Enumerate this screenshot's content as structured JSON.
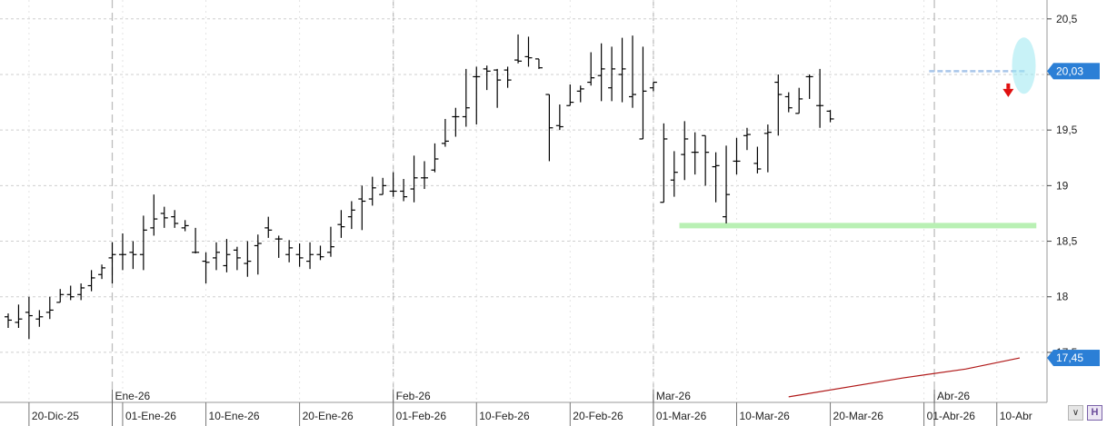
{
  "chart_data": {
    "type": "ohlc",
    "price_axis": {
      "ticks": [
        {
          "value": 20.5,
          "label": "20,5"
        },
        {
          "value": 20.0,
          "label": "20"
        },
        {
          "value": 19.5,
          "label": "19,5"
        },
        {
          "value": 19.0,
          "label": "19"
        },
        {
          "value": 18.5,
          "label": "18,5"
        },
        {
          "value": 18.0,
          "label": "18"
        },
        {
          "value": 17.5,
          "label": "17,5"
        }
      ],
      "range": [
        17.05,
        20.67
      ]
    },
    "date_axis": {
      "ticks": [
        {
          "bar": 2,
          "label": "20-Dic-25"
        },
        {
          "bar": 11,
          "label": "01-Ene-26"
        },
        {
          "bar": 19,
          "label": "10-Ene-26"
        },
        {
          "bar": 28,
          "label": "20-Ene-26"
        },
        {
          "bar": 37,
          "label": "01-Feb-26"
        },
        {
          "bar": 45,
          "label": "10-Feb-26"
        },
        {
          "bar": 54,
          "label": "20-Feb-26"
        },
        {
          "bar": 62,
          "label": "01-Mar-26"
        },
        {
          "bar": 70,
          "label": "10-Mar-26"
        },
        {
          "bar": 79,
          "label": "20-Mar-26"
        },
        {
          "bar": 88,
          "label": "01-Abr-26"
        },
        {
          "bar": 95,
          "label": "10-Abr"
        }
      ],
      "month_markers": [
        {
          "bar": 10,
          "label": "Ene-26"
        },
        {
          "bar": 37,
          "label": "Feb-26"
        },
        {
          "bar": 62,
          "label": "Mar-26"
        },
        {
          "bar": 89,
          "label": "Abr-26"
        }
      ]
    },
    "bars": [
      [
        17.82,
        17.85,
        17.72,
        17.79
      ],
      [
        17.77,
        17.93,
        17.72,
        17.8
      ],
      [
        17.86,
        18.0,
        17.62,
        17.83
      ],
      [
        17.8,
        17.88,
        17.73,
        17.82
      ],
      [
        17.86,
        18.0,
        17.8,
        17.88
      ],
      [
        17.95,
        18.07,
        17.96,
        18.02
      ],
      [
        18.02,
        18.1,
        17.97,
        18.0
      ],
      [
        18.02,
        18.12,
        17.97,
        18.08
      ],
      [
        18.1,
        18.24,
        18.05,
        18.17
      ],
      [
        18.2,
        18.29,
        18.16,
        18.26
      ],
      [
        18.35,
        18.49,
        18.12,
        18.38
      ],
      [
        18.38,
        18.57,
        18.24,
        18.38
      ],
      [
        18.4,
        18.5,
        18.25,
        18.38
      ],
      [
        18.38,
        18.73,
        18.24,
        18.6
      ],
      [
        18.62,
        18.92,
        18.55,
        18.7
      ],
      [
        18.75,
        18.81,
        18.62,
        18.71
      ],
      [
        18.72,
        18.78,
        18.62,
        18.66
      ],
      [
        18.62,
        18.69,
        18.59,
        18.64
      ],
      [
        18.4,
        18.62,
        18.39,
        18.4
      ],
      [
        18.32,
        18.4,
        18.12,
        18.31
      ],
      [
        18.35,
        18.49,
        18.24,
        18.4
      ],
      [
        18.28,
        18.52,
        18.22,
        18.38
      ],
      [
        18.42,
        18.45,
        18.24,
        18.35
      ],
      [
        18.3,
        18.5,
        18.18,
        18.32
      ],
      [
        18.46,
        18.56,
        18.2,
        18.48
      ],
      [
        18.62,
        18.72,
        18.53,
        18.6
      ],
      [
        18.52,
        18.55,
        18.35,
        18.52
      ],
      [
        18.38,
        18.51,
        18.31,
        18.44
      ],
      [
        18.38,
        18.48,
        18.27,
        18.35
      ],
      [
        18.32,
        18.49,
        18.25,
        18.38
      ],
      [
        18.38,
        18.46,
        18.33,
        18.36
      ],
      [
        18.4,
        18.63,
        18.36,
        18.45
      ],
      [
        18.65,
        18.78,
        18.53,
        18.63
      ],
      [
        18.72,
        18.86,
        18.61,
        18.78
      ],
      [
        18.88,
        19.0,
        18.6,
        18.86
      ],
      [
        18.88,
        19.08,
        18.82,
        18.98
      ],
      [
        18.92,
        19.07,
        18.92,
        19.0
      ],
      [
        18.95,
        19.12,
        18.9,
        18.95
      ],
      [
        18.95,
        19.06,
        18.86,
        18.9
      ],
      [
        18.97,
        19.27,
        18.85,
        19.07
      ],
      [
        19.07,
        19.22,
        18.97,
        19.07
      ],
      [
        19.14,
        19.38,
        19.12,
        19.24
      ],
      [
        19.38,
        19.6,
        19.35,
        19.4
      ],
      [
        19.62,
        19.7,
        19.44,
        19.62
      ],
      [
        19.62,
        20.05,
        19.53,
        19.7
      ],
      [
        19.98,
        20.07,
        19.55,
        19.98
      ],
      [
        20.05,
        20.08,
        19.86,
        20.03
      ],
      [
        20.04,
        20.05,
        19.7,
        19.95
      ],
      [
        20.04,
        20.07,
        19.88,
        19.95
      ],
      [
        20.13,
        20.36,
        20.1,
        20.12
      ],
      [
        20.16,
        20.34,
        20.07,
        20.15
      ],
      [
        20.14,
        20.13,
        20.05,
        20.06
      ],
      [
        19.82,
        19.82,
        19.22,
        19.52
      ],
      [
        19.54,
        19.73,
        19.5,
        19.53
      ],
      [
        19.72,
        19.91,
        19.72,
        19.75
      ],
      [
        19.85,
        19.9,
        19.75,
        19.87
      ],
      [
        19.93,
        20.2,
        19.9,
        19.97
      ],
      [
        19.99,
        20.28,
        19.76,
        20.05
      ],
      [
        19.88,
        20.25,
        19.76,
        20.05
      ],
      [
        20.0,
        20.33,
        19.75,
        20.05
      ],
      [
        19.8,
        20.35,
        19.7,
        19.82
      ],
      [
        19.42,
        20.25,
        19.62,
        19.85
      ],
      [
        19.88,
        19.9,
        19.85,
        19.93
      ],
      [
        18.85,
        19.56,
        18.93,
        19.42
      ],
      [
        19.05,
        19.31,
        18.9,
        19.12
      ],
      [
        19.28,
        19.58,
        19.05,
        19.42
      ],
      [
        19.3,
        19.48,
        19.1,
        19.3
      ],
      [
        19.45,
        19.0,
        19.05,
        19.3
      ],
      [
        19.17,
        19.3,
        18.85,
        19.18
      ],
      [
        18.72,
        19.36,
        18.66,
        18.92
      ],
      [
        19.22,
        19.43,
        19.1,
        19.22
      ],
      [
        19.45,
        19.52,
        19.32,
        19.46
      ],
      [
        19.2,
        19.35,
        19.11,
        19.15
      ],
      [
        19.47,
        19.55,
        19.12,
        19.48
      ],
      [
        19.93,
        20.0,
        19.45,
        19.82
      ],
      [
        19.8,
        19.84,
        19.66,
        19.7
      ],
      [
        19.65,
        19.88,
        19.65,
        19.78
      ],
      [
        19.98,
        20.0,
        19.78,
        19.98
      ],
      [
        19.72,
        20.05,
        19.52,
        19.72
      ],
      [
        19.67,
        19.68,
        19.57,
        19.6
      ]
    ],
    "current_price": {
      "value": 20.03,
      "label": "20,03",
      "color": "#2b7fd6"
    },
    "sma_level": {
      "value": 17.45,
      "label": "17,45",
      "color": "#2b7fd6"
    },
    "colors": {
      "bars": "#000000",
      "grid": "#cfcfcf",
      "support_line": "#b9f0b4",
      "moving_average": "#b01818",
      "highlight_ellipse": "#9be8f0",
      "sell_arrow": "#e01010",
      "current_price_line": "#a9c6ea"
    }
  },
  "ui": {
    "zoom_button_icon": "zoom-toggle-icon",
    "h_button_label": "H"
  }
}
